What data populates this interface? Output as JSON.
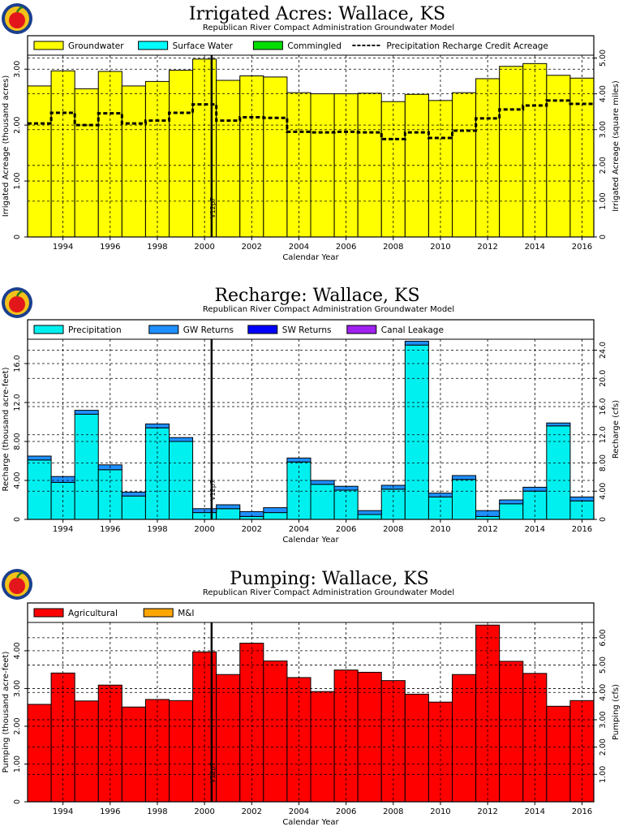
{
  "colors": {
    "groundwater": "#ffff00",
    "surface_water": "#00ffff",
    "commingled": "#00dd00",
    "precipitation": "#00f0f0",
    "gw_returns": "#1e90ff",
    "sw_returns": "#0000ff",
    "canal_leakage": "#a020f0",
    "agricultural": "#ff0000",
    "mi": "#ffa500"
  },
  "chart_data": [
    {
      "type": "bar",
      "title": "Irrigated Acres: Wallace, KS",
      "subtitle": "Republican River Compact Administration Groundwater Model",
      "xlabel": "Calendar Year",
      "ylabel": "Irrigated Acreage (thousand acres)",
      "y2label": "Irrigated Acreage (square miles)",
      "x": [
        1993,
        1994,
        1995,
        1996,
        1997,
        1998,
        1999,
        2000,
        2001,
        2002,
        2003,
        2004,
        2005,
        2006,
        2007,
        2008,
        2009,
        2010,
        2011,
        2012,
        2013,
        2014,
        2015,
        2016
      ],
      "xticks": [
        "1994",
        "1996",
        "1998",
        "2000",
        "2002",
        "2004",
        "2006",
        "2008",
        "2010",
        "2012",
        "2014",
        "2016"
      ],
      "yticks": [
        "0",
        "1.00",
        "2.00",
        "3.00"
      ],
      "y2ticks": [
        "0",
        "1.00",
        "2.00",
        "3.00",
        "4.00",
        "5.00"
      ],
      "ylim": [
        0,
        3.25
      ],
      "y2lim": [
        0,
        5.08
      ],
      "series": [
        {
          "name": "Groundwater",
          "color_key": "groundwater",
          "values": [
            2.7,
            2.97,
            2.65,
            2.96,
            2.7,
            2.78,
            2.98,
            3.18,
            2.8,
            2.88,
            2.86,
            2.58,
            2.56,
            2.56,
            2.57,
            2.42,
            2.55,
            2.44,
            2.58,
            2.83,
            3.05,
            3.1,
            2.89,
            2.84
          ]
        },
        {
          "name": "Surface Water",
          "color_key": "surface_water",
          "values": [
            0,
            0,
            0,
            0,
            0,
            0,
            0,
            0,
            0,
            0,
            0,
            0,
            0,
            0,
            0,
            0,
            0,
            0,
            0,
            0,
            0,
            0,
            0,
            0
          ]
        },
        {
          "name": "Commingled",
          "color_key": "commingled",
          "values": [
            0,
            0,
            0,
            0,
            0,
            0,
            0,
            0,
            0,
            0,
            0,
            0,
            0,
            0,
            0,
            0,
            0,
            0,
            0,
            0,
            0,
            0,
            0,
            0
          ]
        },
        {
          "name": "Precipitation Recharge Credit Acreage",
          "style": "dashed-line",
          "values": [
            2.03,
            2.22,
            2.0,
            2.21,
            2.03,
            2.08,
            2.22,
            2.37,
            2.08,
            2.14,
            2.13,
            1.88,
            1.87,
            1.88,
            1.87,
            1.75,
            1.87,
            1.77,
            1.9,
            2.12,
            2.28,
            2.35,
            2.44,
            2.38
          ]
        }
      ],
      "legend": [
        "Groundwater",
        "Surface Water",
        "Commingled",
        "Precipitation Recharge Credit Acreage"
      ],
      "legend_position": "top",
      "grid": true,
      "marker": {
        "label": "V12p7",
        "x": 2000.8
      }
    },
    {
      "type": "bar",
      "title": "Recharge: Wallace, KS",
      "subtitle": "Republican River Compact Administration Groundwater Model",
      "xlabel": "Calendar Year",
      "ylabel": "Recharge (thousand acre-feet)",
      "y2label": "Recharge (cfs)",
      "x": [
        1993,
        1994,
        1995,
        1996,
        1997,
        1998,
        1999,
        2000,
        2001,
        2002,
        2003,
        2004,
        2005,
        2006,
        2007,
        2008,
        2009,
        2010,
        2011,
        2012,
        2013,
        2014,
        2015,
        2016
      ],
      "xticks": [
        "1994",
        "1996",
        "1998",
        "2000",
        "2002",
        "2004",
        "2006",
        "2008",
        "2010",
        "2012",
        "2014",
        "2016"
      ],
      "yticks": [
        "0",
        "4.00",
        "8.00",
        "12.0",
        "16.0"
      ],
      "y2ticks": [
        "0",
        "4.00",
        "8.00",
        "12.0",
        "16.0",
        "20.0",
        "24.0"
      ],
      "ylim": [
        0,
        18.5
      ],
      "y2lim": [
        0,
        25.55
      ],
      "series": [
        {
          "name": "Precipitation",
          "color_key": "precipitation",
          "values": [
            6.1,
            3.8,
            10.8,
            5.1,
            2.4,
            9.4,
            8.0,
            0.7,
            1.1,
            0.3,
            0.7,
            5.9,
            3.6,
            3.0,
            0.5,
            3.1,
            17.9,
            2.3,
            4.1,
            0.3,
            1.6,
            2.9,
            9.6,
            1.9
          ]
        },
        {
          "name": "GW Returns",
          "color_key": "gw_returns",
          "values": [
            0.4,
            0.6,
            0.4,
            0.5,
            0.4,
            0.4,
            0.4,
            0.4,
            0.4,
            0.5,
            0.5,
            0.4,
            0.4,
            0.4,
            0.4,
            0.4,
            0.4,
            0.4,
            0.4,
            0.6,
            0.4,
            0.4,
            0.3,
            0.4
          ]
        },
        {
          "name": "SW Returns",
          "color_key": "sw_returns",
          "values": [
            0,
            0,
            0,
            0,
            0,
            0,
            0,
            0,
            0,
            0,
            0,
            0,
            0,
            0,
            0,
            0,
            0,
            0,
            0,
            0,
            0,
            0,
            0,
            0
          ]
        },
        {
          "name": "Canal Leakage",
          "color_key": "canal_leakage",
          "values": [
            0,
            0,
            0,
            0,
            0,
            0,
            0,
            0,
            0,
            0,
            0,
            0,
            0,
            0,
            0,
            0,
            0,
            0,
            0,
            0,
            0,
            0,
            0,
            0
          ]
        }
      ],
      "legend": [
        "Precipitation",
        "GW Returns",
        "SW Returns",
        "Canal Leakage"
      ],
      "legend_position": "top",
      "grid": true,
      "marker": {
        "label": "V12p7",
        "x": 2000.8
      }
    },
    {
      "type": "bar",
      "title": "Pumping: Wallace, KS",
      "subtitle": "Republican River Compact Administration Groundwater Model",
      "xlabel": "Calendar Year",
      "ylabel": "Pumping (thousand acre-feet)",
      "y2label": "Pumping (cfs)",
      "x": [
        1993,
        1994,
        1995,
        1996,
        1997,
        1998,
        1999,
        2000,
        2001,
        2002,
        2003,
        2004,
        2005,
        2006,
        2007,
        2008,
        2009,
        2010,
        2011,
        2012,
        2013,
        2014,
        2015,
        2016
      ],
      "xticks": [
        "1994",
        "1996",
        "1998",
        "2000",
        "2002",
        "2004",
        "2006",
        "2008",
        "2010",
        "2012",
        "2014",
        "2016"
      ],
      "yticks": [
        "0",
        "1.00",
        "2.00",
        "3.00",
        "4.00"
      ],
      "y2ticks": [
        "1.00",
        "2.00",
        "3.00",
        "4.00",
        "5.00",
        "6.00"
      ],
      "ylim": [
        0,
        4.75
      ],
      "y2lim": [
        0,
        6.56
      ],
      "series": [
        {
          "name": "Agricultural",
          "color_key": "agricultural",
          "values": [
            2.58,
            3.41,
            2.67,
            3.09,
            2.51,
            2.71,
            2.68,
            3.97,
            3.37,
            4.2,
            3.73,
            3.29,
            2.92,
            3.49,
            3.43,
            3.21,
            2.85,
            2.64,
            3.37,
            4.68,
            3.72,
            3.4,
            2.53,
            2.68
          ]
        },
        {
          "name": "M&I",
          "color_key": "mi",
          "values": [
            0,
            0,
            0,
            0,
            0,
            0,
            0,
            0,
            0,
            0,
            0,
            0,
            0,
            0,
            0,
            0,
            0,
            0,
            0,
            0,
            0,
            0,
            0,
            0
          ]
        }
      ],
      "legend": [
        "Agricultural",
        "M&I"
      ],
      "legend_position": "top",
      "grid": true,
      "marker": {
        "label": "V12p7",
        "x": 2000.8
      }
    }
  ]
}
